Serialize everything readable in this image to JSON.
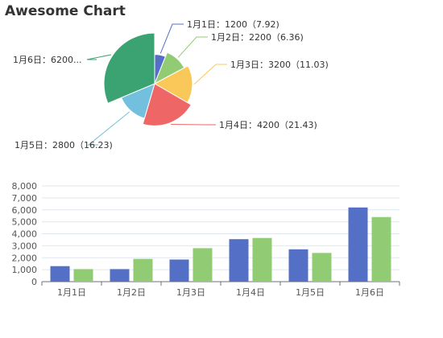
{
  "title": "Awesome Chart",
  "chart_data": [
    {
      "type": "pie",
      "title": "Awesome Chart",
      "slices": [
        {
          "label": "1月1日",
          "value": 1200,
          "extra": "7.92",
          "text": "1月1日：1200（7.92)",
          "color": "#5470c6"
        },
        {
          "label": "1月2日",
          "value": 2200,
          "extra": "6.36",
          "text": "1月2日：2200（6.36)",
          "color": "#91cc75"
        },
        {
          "label": "1月3日",
          "value": 3200,
          "extra": "11.03",
          "text": "1月3日：3200（11.03)",
          "color": "#fac858"
        },
        {
          "label": "1月4日",
          "value": 4200,
          "extra": "21.43",
          "text": "1月4日：4200（21.43)",
          "color": "#ee6666"
        },
        {
          "label": "1月5日",
          "value": 2800,
          "extra": "16.23",
          "text": "1月5日：2800（16.23)",
          "color": "#73c0de"
        },
        {
          "label": "1月6日",
          "value": 6200,
          "extra": "",
          "text": "1月6日：6200...",
          "color": "#3ba272"
        }
      ]
    },
    {
      "type": "bar",
      "categories": [
        "1月1日",
        "1月2日",
        "1月3日",
        "1月4日",
        "1月5日",
        "1月6日"
      ],
      "series": [
        {
          "values": [
            1300,
            1050,
            1850,
            3550,
            2700,
            6200
          ],
          "color": "#5470c6"
        },
        {
          "values": [
            1050,
            1900,
            2800,
            3650,
            2400,
            5400
          ],
          "color": "#91cc75"
        }
      ],
      "ylim": [
        0,
        8000
      ],
      "yticks": [
        "0",
        "1,000",
        "2,000",
        "3,000",
        "4,000",
        "5,000",
        "6,000",
        "7,000",
        "8,000"
      ],
      "grid": true
    }
  ]
}
